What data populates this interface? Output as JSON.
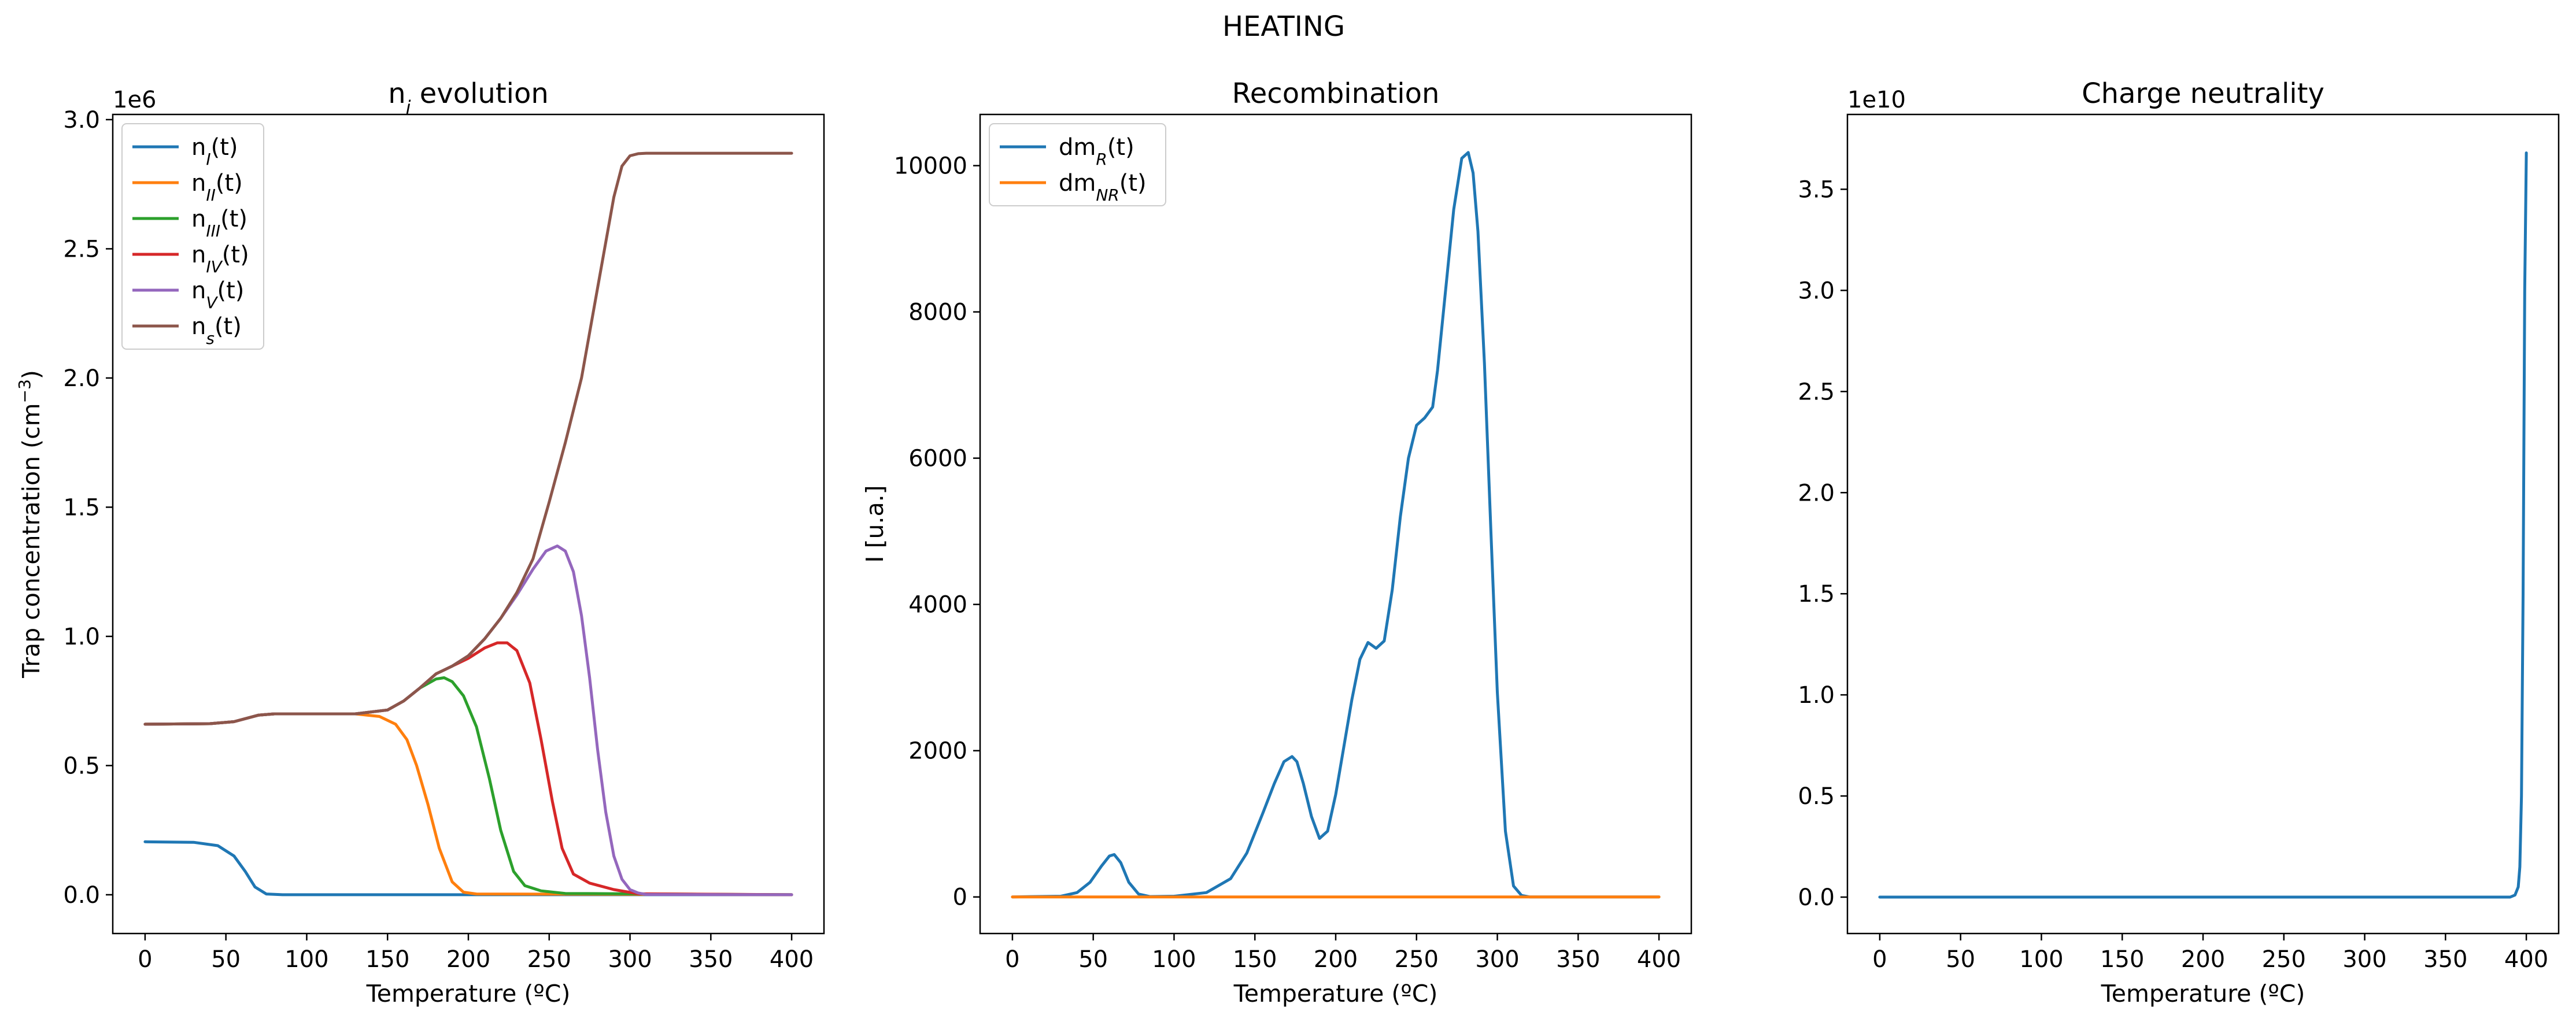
{
  "figure": {
    "suptitle": "HEATING"
  },
  "chart_data": [
    {
      "type": "line",
      "title": "n",
      "title_sub": "i",
      "title_rest": " evolution",
      "xlabel": "Temperature (ºC)",
      "ylabel": "Trap concentration (cm",
      "ylabel_sup": "−3",
      "ylabel_end": ")",
      "offset_text": "1e6",
      "xlim": [
        -20,
        420
      ],
      "ylim": [
        -0.15,
        3.02
      ],
      "xticks": [
        0,
        50,
        100,
        150,
        200,
        250,
        300,
        350,
        400
      ],
      "yticks": [
        0.0,
        0.5,
        1.0,
        1.5,
        2.0,
        2.5,
        3.0
      ],
      "ytick_labels": [
        "0.0",
        "0.5",
        "1.0",
        "1.5",
        "2.0",
        "2.5",
        "3.0"
      ],
      "legend": "upper-left",
      "series": [
        {
          "name": "n",
          "sub": "I",
          "end": "(t)",
          "color": "#1f77b4",
          "x": [
            0,
            30,
            45,
            55,
            62,
            68,
            75,
            85,
            400
          ],
          "y": [
            0.205,
            0.203,
            0.19,
            0.15,
            0.09,
            0.03,
            0.003,
            0.0,
            0.0
          ]
        },
        {
          "name": "n",
          "sub": "II",
          "end": "(t)",
          "color": "#ff7f0e",
          "x": [
            0,
            40,
            55,
            70,
            80,
            100,
            130,
            145,
            155,
            162,
            168,
            175,
            182,
            190,
            197,
            205,
            400
          ],
          "y": [
            0.66,
            0.662,
            0.67,
            0.695,
            0.7,
            0.7,
            0.7,
            0.69,
            0.66,
            0.6,
            0.5,
            0.35,
            0.18,
            0.05,
            0.01,
            0.003,
            0.0
          ]
        },
        {
          "name": "n",
          "sub": "III",
          "end": "(t)",
          "color": "#2ca02c",
          "x": [
            0,
            40,
            55,
            70,
            80,
            100,
            130,
            150,
            160,
            170,
            180,
            185,
            190,
            197,
            205,
            213,
            220,
            228,
            235,
            245,
            260,
            400
          ],
          "y": [
            0.66,
            0.662,
            0.67,
            0.695,
            0.7,
            0.7,
            0.7,
            0.715,
            0.75,
            0.8,
            0.835,
            0.84,
            0.825,
            0.77,
            0.65,
            0.45,
            0.25,
            0.09,
            0.035,
            0.015,
            0.005,
            0.0
          ]
        },
        {
          "name": "n",
          "sub": "IV",
          "end": "(t)",
          "color": "#d62728",
          "x": [
            0,
            40,
            55,
            70,
            80,
            100,
            130,
            150,
            160,
            170,
            180,
            190,
            200,
            210,
            218,
            224,
            230,
            238,
            245,
            252,
            258,
            265,
            275,
            290,
            305,
            400
          ],
          "y": [
            0.66,
            0.662,
            0.67,
            0.695,
            0.7,
            0.7,
            0.7,
            0.715,
            0.75,
            0.8,
            0.855,
            0.885,
            0.915,
            0.955,
            0.975,
            0.975,
            0.945,
            0.82,
            0.6,
            0.36,
            0.18,
            0.08,
            0.045,
            0.02,
            0.004,
            0.0
          ]
        },
        {
          "name": "n",
          "sub": "V",
          "end": "(t)",
          "color": "#9467bd",
          "x": [
            0,
            40,
            55,
            70,
            80,
            100,
            130,
            150,
            160,
            170,
            180,
            190,
            200,
            210,
            220,
            230,
            240,
            248,
            255,
            260,
            265,
            270,
            275,
            280,
            285,
            290,
            295,
            300,
            305,
            310,
            400
          ],
          "y": [
            0.66,
            0.662,
            0.67,
            0.695,
            0.7,
            0.7,
            0.7,
            0.715,
            0.75,
            0.8,
            0.855,
            0.885,
            0.925,
            0.99,
            1.07,
            1.16,
            1.26,
            1.33,
            1.35,
            1.33,
            1.25,
            1.08,
            0.84,
            0.56,
            0.32,
            0.15,
            0.06,
            0.02,
            0.007,
            0.001,
            0.0
          ]
        },
        {
          "name": "n",
          "sub": "s",
          "end": "(t)",
          "color": "#8c564b",
          "x": [
            0,
            40,
            55,
            70,
            80,
            100,
            130,
            150,
            160,
            170,
            180,
            190,
            200,
            210,
            220,
            230,
            240,
            250,
            260,
            270,
            280,
            290,
            295,
            300,
            305,
            310,
            320,
            400
          ],
          "y": [
            0.66,
            0.662,
            0.67,
            0.695,
            0.7,
            0.7,
            0.7,
            0.715,
            0.75,
            0.8,
            0.855,
            0.885,
            0.925,
            0.99,
            1.07,
            1.17,
            1.3,
            1.52,
            1.75,
            2.0,
            2.35,
            2.7,
            2.82,
            2.86,
            2.868,
            2.87,
            2.87,
            2.87
          ]
        }
      ]
    },
    {
      "type": "line",
      "title": "Recombination",
      "xlabel": "Temperature (ºC)",
      "ylabel": "I [u.a.]",
      "xlim": [
        -20,
        420
      ],
      "ylim": [
        -500,
        10700
      ],
      "xticks": [
        0,
        50,
        100,
        150,
        200,
        250,
        300,
        350,
        400
      ],
      "yticks": [
        0,
        2000,
        4000,
        6000,
        8000,
        10000
      ],
      "ytick_labels": [
        "0",
        "2000",
        "4000",
        "6000",
        "8000",
        "10000"
      ],
      "legend": "upper-left",
      "series": [
        {
          "name": "dm",
          "sub": "R",
          "end": "(t)",
          "color": "#1f77b4",
          "x": [
            0,
            30,
            40,
            48,
            55,
            60,
            63,
            67,
            72,
            78,
            85,
            100,
            120,
            135,
            145,
            155,
            162,
            168,
            173,
            176,
            180,
            185,
            190,
            195,
            200,
            205,
            210,
            215,
            220,
            225,
            230,
            235,
            240,
            245,
            250,
            255,
            260,
            263,
            268,
            273,
            278,
            282,
            285,
            288,
            292,
            296,
            300,
            305,
            310,
            315,
            320,
            400
          ],
          "y": [
            0,
            10,
            60,
            200,
            420,
            560,
            580,
            470,
            200,
            40,
            5,
            10,
            60,
            250,
            600,
            1150,
            1550,
            1850,
            1920,
            1850,
            1550,
            1100,
            800,
            900,
            1400,
            2050,
            2700,
            3250,
            3480,
            3400,
            3500,
            4200,
            5200,
            6000,
            6450,
            6550,
            6700,
            7200,
            8300,
            9400,
            10100,
            10180,
            9900,
            9100,
            7300,
            5000,
            2800,
            900,
            150,
            20,
            0,
            0
          ]
        },
        {
          "name": "dm",
          "sub": "NR",
          "end": "(t)",
          "color": "#ff7f0e",
          "x": [
            0,
            400
          ],
          "y": [
            0,
            0
          ]
        }
      ]
    },
    {
      "type": "line",
      "title": "Charge neutrality",
      "xlabel": "Temperature (ºC)",
      "ylabel": "",
      "offset_text": "1e10",
      "xlim": [
        -20,
        420
      ],
      "ylim": [
        -0.18,
        3.87
      ],
      "xticks": [
        0,
        50,
        100,
        150,
        200,
        250,
        300,
        350,
        400
      ],
      "yticks": [
        0.0,
        0.5,
        1.0,
        1.5,
        2.0,
        2.5,
        3.0,
        3.5
      ],
      "ytick_labels": [
        "0.0",
        "0.5",
        "1.0",
        "1.5",
        "2.0",
        "2.5",
        "3.0",
        "3.5"
      ],
      "series": [
        {
          "name": "",
          "color": "#1f77b4",
          "x": [
            0,
            390,
            393,
            395,
            396,
            397,
            398,
            399,
            400
          ],
          "y": [
            0.0,
            0.0,
            0.01,
            0.05,
            0.15,
            0.5,
            1.5,
            3.0,
            3.68
          ]
        }
      ]
    }
  ]
}
